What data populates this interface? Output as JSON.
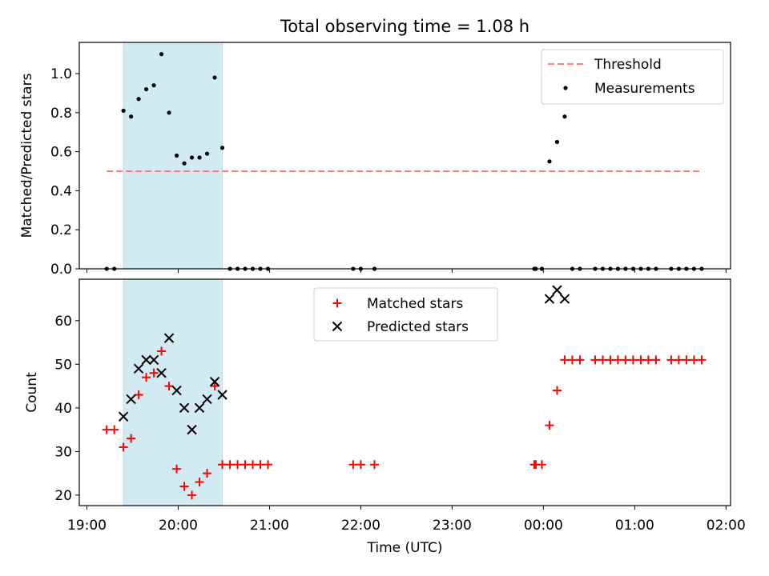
{
  "chart_data": [
    {
      "type": "scatter",
      "title": "Total observing time = 1.08 h",
      "xlabel": "",
      "ylabel": "Matched/Predicted stars",
      "xlim": [
        "18:55",
        "02:03"
      ],
      "ylim": [
        0,
        1.16
      ],
      "yticks": [
        "0.0",
        "0.2",
        "0.4",
        "0.6",
        "0.8",
        "1.0"
      ],
      "grid": false,
      "legend_position": "top-right",
      "shaded_span": {
        "x_start": "19:24",
        "x_end": "20:29",
        "color": "#add8e6"
      },
      "threshold": {
        "name": "Threshold",
        "y": 0.5,
        "x_start": "19:13",
        "x_end": "01:43",
        "color": "#ff7f7f"
      },
      "series": [
        {
          "name": "Measurements",
          "color": "#000000",
          "points": [
            {
              "x": "19:13",
              "y": 0.0
            },
            {
              "x": "19:18",
              "y": 0.0
            },
            {
              "x": "19:24",
              "y": 0.81
            },
            {
              "x": "19:29",
              "y": 0.78
            },
            {
              "x": "19:34",
              "y": 0.87
            },
            {
              "x": "19:39",
              "y": 0.92
            },
            {
              "x": "19:44",
              "y": 0.94
            },
            {
              "x": "19:49",
              "y": 1.1
            },
            {
              "x": "19:54",
              "y": 0.8
            },
            {
              "x": "19:59",
              "y": 0.58
            },
            {
              "x": "20:04",
              "y": 0.54
            },
            {
              "x": "20:09",
              "y": 0.57
            },
            {
              "x": "20:14",
              "y": 0.57
            },
            {
              "x": "20:19",
              "y": 0.59
            },
            {
              "x": "20:24",
              "y": 0.98
            },
            {
              "x": "20:29",
              "y": 0.62
            },
            {
              "x": "20:34",
              "y": 0.0
            },
            {
              "x": "20:39",
              "y": 0.0
            },
            {
              "x": "20:44",
              "y": 0.0
            },
            {
              "x": "20:49",
              "y": 0.0
            },
            {
              "x": "20:54",
              "y": 0.0
            },
            {
              "x": "20:59",
              "y": 0.0
            },
            {
              "x": "21:55",
              "y": 0.0
            },
            {
              "x": "22:00",
              "y": 0.0
            },
            {
              "x": "22:09",
              "y": 0.0
            },
            {
              "x": "23:54",
              "y": 0.0
            },
            {
              "x": "23:55",
              "y": 0.0
            },
            {
              "x": "23:59",
              "y": 0.0
            },
            {
              "x": "00:04",
              "y": 0.55
            },
            {
              "x": "00:09",
              "y": 0.65
            },
            {
              "x": "00:14",
              "y": 0.78
            },
            {
              "x": "00:19",
              "y": 0.0
            },
            {
              "x": "00:24",
              "y": 0.0
            },
            {
              "x": "00:34",
              "y": 0.0
            },
            {
              "x": "00:39",
              "y": 0.0
            },
            {
              "x": "00:44",
              "y": 0.0
            },
            {
              "x": "00:49",
              "y": 0.0
            },
            {
              "x": "00:54",
              "y": 0.0
            },
            {
              "x": "00:59",
              "y": 0.0
            },
            {
              "x": "01:04",
              "y": 0.0
            },
            {
              "x": "01:09",
              "y": 0.0
            },
            {
              "x": "01:14",
              "y": 0.0
            },
            {
              "x": "01:24",
              "y": 0.0
            },
            {
              "x": "01:29",
              "y": 0.0
            },
            {
              "x": "01:34",
              "y": 0.0
            },
            {
              "x": "01:39",
              "y": 0.0
            },
            {
              "x": "01:44",
              "y": 0.0
            }
          ]
        }
      ]
    },
    {
      "type": "scatter",
      "title": "",
      "xlabel": "Time (UTC)",
      "ylabel": "Count",
      "xlim": [
        "18:55",
        "02:03"
      ],
      "ylim": [
        17.6,
        69.5
      ],
      "xticks": [
        "19:00",
        "20:00",
        "21:00",
        "22:00",
        "23:00",
        "00:00",
        "01:00",
        "02:00"
      ],
      "yticks": [
        "20",
        "30",
        "40",
        "50",
        "60"
      ],
      "grid": false,
      "legend_position": "top-center",
      "shaded_span": {
        "x_start": "19:24",
        "x_end": "20:29",
        "color": "#add8e6"
      },
      "series": [
        {
          "name": "Matched stars",
          "marker": "plus",
          "color": "#ff0000",
          "points": [
            {
              "x": "19:13",
              "y": 35
            },
            {
              "x": "19:18",
              "y": 35
            },
            {
              "x": "19:24",
              "y": 31
            },
            {
              "x": "19:29",
              "y": 33
            },
            {
              "x": "19:34",
              "y": 43
            },
            {
              "x": "19:39",
              "y": 47
            },
            {
              "x": "19:44",
              "y": 48
            },
            {
              "x": "19:49",
              "y": 53
            },
            {
              "x": "19:54",
              "y": 45
            },
            {
              "x": "19:59",
              "y": 26
            },
            {
              "x": "20:04",
              "y": 22
            },
            {
              "x": "20:09",
              "y": 20
            },
            {
              "x": "20:14",
              "y": 23
            },
            {
              "x": "20:19",
              "y": 25
            },
            {
              "x": "20:24",
              "y": 45
            },
            {
              "x": "20:29",
              "y": 27
            },
            {
              "x": "20:34",
              "y": 27
            },
            {
              "x": "20:39",
              "y": 27
            },
            {
              "x": "20:44",
              "y": 27
            },
            {
              "x": "20:49",
              "y": 27
            },
            {
              "x": "20:54",
              "y": 27
            },
            {
              "x": "20:59",
              "y": 27
            },
            {
              "x": "21:55",
              "y": 27
            },
            {
              "x": "22:00",
              "y": 27
            },
            {
              "x": "22:09",
              "y": 27
            },
            {
              "x": "23:54",
              "y": 27
            },
            {
              "x": "23:55",
              "y": 27
            },
            {
              "x": "23:59",
              "y": 27
            },
            {
              "x": "00:04",
              "y": 36
            },
            {
              "x": "00:09",
              "y": 44
            },
            {
              "x": "00:14",
              "y": 51
            },
            {
              "x": "00:19",
              "y": 51
            },
            {
              "x": "00:24",
              "y": 51
            },
            {
              "x": "00:34",
              "y": 51
            },
            {
              "x": "00:39",
              "y": 51
            },
            {
              "x": "00:44",
              "y": 51
            },
            {
              "x": "00:49",
              "y": 51
            },
            {
              "x": "00:54",
              "y": 51
            },
            {
              "x": "00:59",
              "y": 51
            },
            {
              "x": "01:04",
              "y": 51
            },
            {
              "x": "01:09",
              "y": 51
            },
            {
              "x": "01:14",
              "y": 51
            },
            {
              "x": "01:24",
              "y": 51
            },
            {
              "x": "01:29",
              "y": 51
            },
            {
              "x": "01:34",
              "y": 51
            },
            {
              "x": "01:39",
              "y": 51
            },
            {
              "x": "01:44",
              "y": 51
            }
          ]
        },
        {
          "name": "Predicted stars",
          "marker": "x",
          "color": "#000000",
          "points": [
            {
              "x": "19:24",
              "y": 38
            },
            {
              "x": "19:29",
              "y": 42
            },
            {
              "x": "19:34",
              "y": 49
            },
            {
              "x": "19:39",
              "y": 51
            },
            {
              "x": "19:44",
              "y": 51
            },
            {
              "x": "19:49",
              "y": 48
            },
            {
              "x": "19:54",
              "y": 56
            },
            {
              "x": "19:59",
              "y": 44
            },
            {
              "x": "20:04",
              "y": 40
            },
            {
              "x": "20:09",
              "y": 35
            },
            {
              "x": "20:14",
              "y": 40
            },
            {
              "x": "20:19",
              "y": 42
            },
            {
              "x": "20:24",
              "y": 46
            },
            {
              "x": "20:29",
              "y": 43
            },
            {
              "x": "00:04",
              "y": 65
            },
            {
              "x": "00:09",
              "y": 67
            },
            {
              "x": "00:14",
              "y": 65
            }
          ]
        }
      ]
    }
  ]
}
